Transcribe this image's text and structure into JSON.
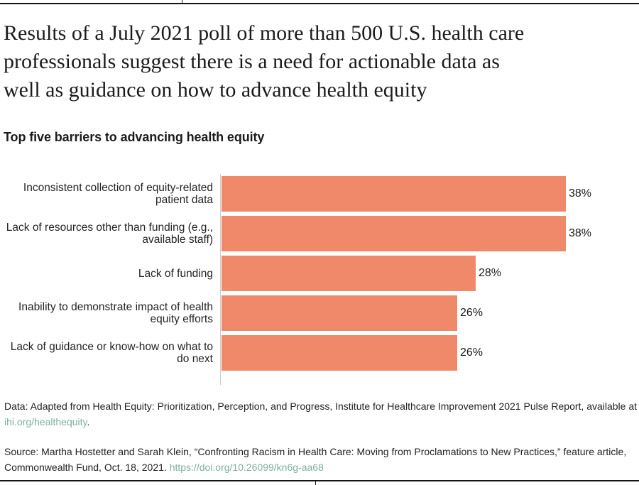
{
  "header": {
    "title_lines": [
      "Results of a July 2021 poll of more than 500 U.S. health care",
      "professionals suggest there is a need for actionable data as",
      "well as guidance on how to advance health equity"
    ],
    "subtitle": "Top five barriers to advancing health equity"
  },
  "chart_data": {
    "type": "bar",
    "orientation": "horizontal",
    "title": "Top five barriers to advancing health equity",
    "categories": [
      "Inconsistent collection of equity-related patient data",
      "Lack of resources other than funding (e.g., available staff)",
      "Lack of funding",
      "Inability to demonstrate impact of health equity efforts",
      "Lack of guidance or know-how on what to do next"
    ],
    "values": [
      38,
      38,
      28,
      26,
      26
    ],
    "value_labels": [
      "38%",
      "38%",
      "28%",
      "26%",
      "26%"
    ],
    "unit": "percent",
    "xlim": [
      0,
      45
    ],
    "grid": false,
    "legend": "none"
  },
  "footer": {
    "data_note_line1": "Data: Adapted from Health Equity: Prioritization, Perception, and Progress, Institute for Healthcare Improvement 2021 Pulse Report, available at",
    "data_note_link": "ihi.org/healthequity",
    "data_note_suffix": ".",
    "source_note_line1": "Source: Martha Hostetter and Sarah Klein, “Confronting Racism in Health Care: Moving from Proclamations to New Practices,” feature article,",
    "source_note_line2": "Commonwealth Fund, Oct. 18, 2021. ",
    "source_note_link": "https://doi.org/10.26099/kn6g-aa68"
  },
  "colors": {
    "bar": "#F0886A",
    "link": "#7EB09B",
    "text": "#1A1A1A",
    "rule": "#141414",
    "axis_line": "#CCCCCC"
  }
}
